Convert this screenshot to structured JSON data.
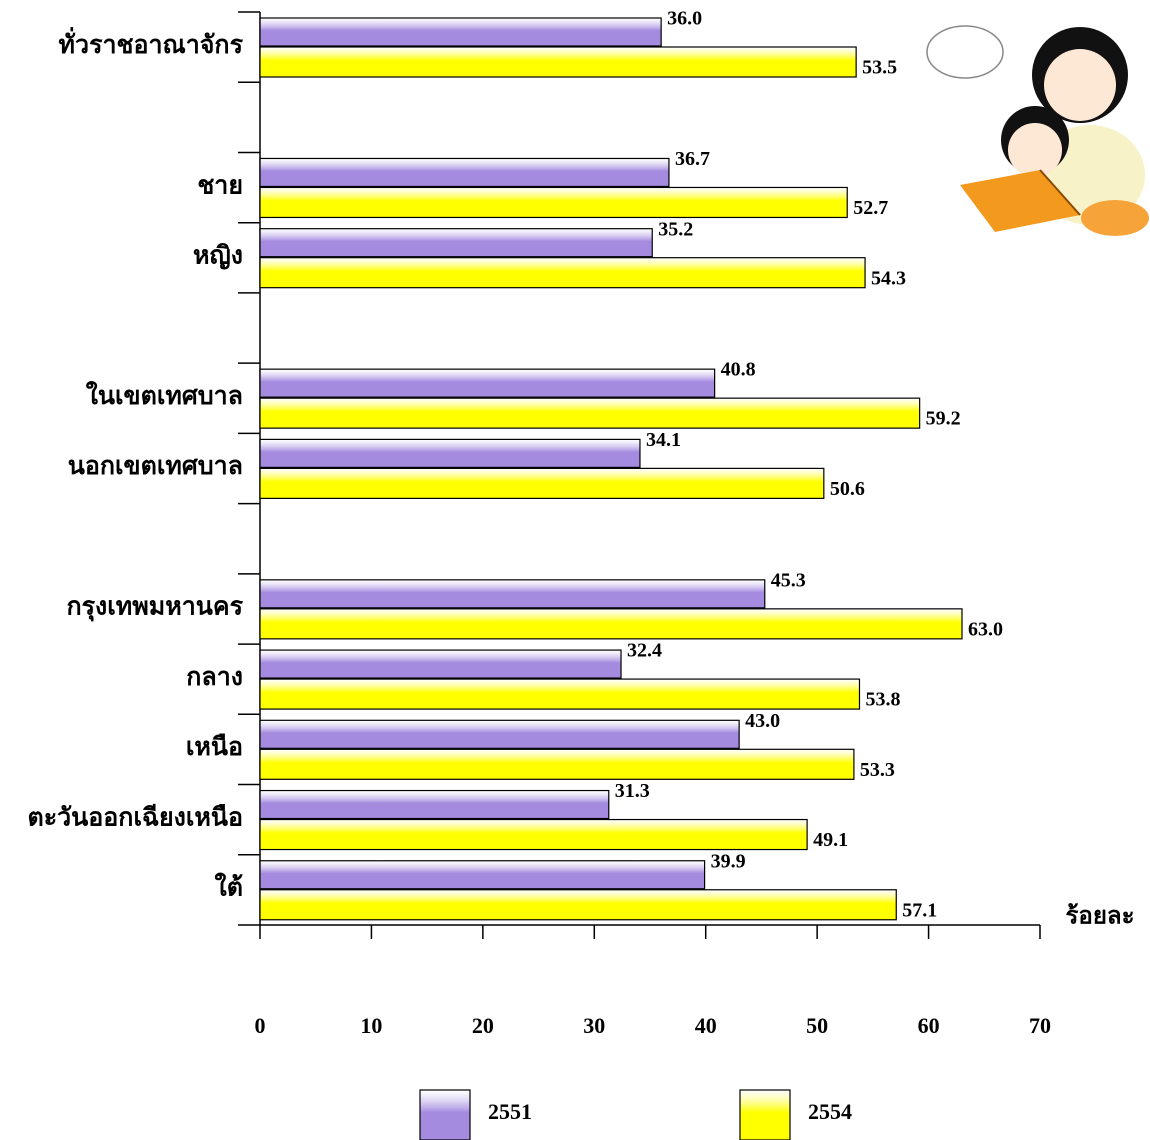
{
  "chart_data": {
    "type": "bar",
    "orientation": "horizontal",
    "categories": [
      "ทั่วราชอาณาจักร",
      null,
      "ชาย",
      "หญิง",
      null,
      "ในเขตเทศบาล",
      "นอกเขตเทศบาล",
      null,
      "กรุงเทพมหานคร",
      "กลาง",
      "เหนือ",
      "ตะวันออกเฉียงเหนือ",
      "ใต้"
    ],
    "series": [
      {
        "name": "2551",
        "color": "#a48be0",
        "values": [
          36.0,
          null,
          36.7,
          35.2,
          null,
          40.8,
          34.1,
          null,
          45.3,
          32.4,
          43.0,
          31.3,
          39.9
        ],
        "value_labels": [
          "36.0",
          null,
          "36.7",
          "35.2",
          null,
          "40.8",
          "34.1",
          null,
          "45.3",
          "32.4",
          "43.0",
          "31.3",
          "39.9"
        ]
      },
      {
        "name": "2554",
        "color": "#ffff00",
        "values": [
          53.5,
          null,
          52.7,
          54.3,
          null,
          59.2,
          50.6,
          null,
          63.0,
          53.8,
          53.3,
          49.1,
          57.1
        ],
        "value_labels": [
          "53.5",
          null,
          "52.7",
          "54.3",
          null,
          "59.2",
          "50.6",
          null,
          "63.0",
          "53.8",
          "53.3",
          "49.1",
          "57.1"
        ]
      }
    ],
    "xlim": [
      0,
      70
    ],
    "xticks": [
      0,
      10,
      20,
      30,
      40,
      50,
      60,
      70
    ],
    "x_label": "ร้อยละ",
    "legend": "bottom"
  }
}
